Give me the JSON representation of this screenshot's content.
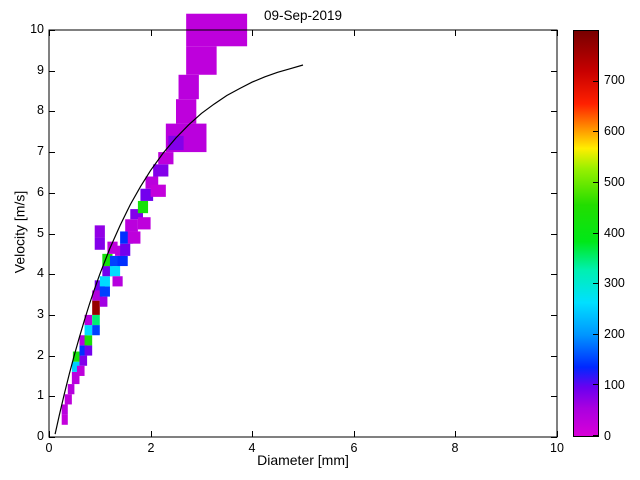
{
  "figure": {
    "background": "#ffffff"
  },
  "chart_data": {
    "type": "heatmap",
    "title": "09-Sep-2019",
    "xlabel": "Diameter [mm]",
    "ylabel": "Velocity [m/s]",
    "xlim": [
      0,
      10
    ],
    "ylim": [
      0,
      10
    ],
    "xticks": [
      0,
      2,
      4,
      6,
      8,
      10
    ],
    "yticks": [
      0,
      1,
      2,
      3,
      4,
      5,
      6,
      7,
      8,
      9,
      10
    ],
    "grid": false,
    "legend": false,
    "colorbar": {
      "position": "right",
      "min": 0,
      "max": 800,
      "ticks": [
        0,
        100,
        200,
        300,
        400,
        500,
        600,
        700
      ]
    },
    "colormap": [
      {
        "t": 0.0,
        "c": "#d800d8"
      },
      {
        "t": 0.07,
        "c": "#a800e0"
      },
      {
        "t": 0.12,
        "c": "#6a00f0"
      },
      {
        "t": 0.17,
        "c": "#0028ff"
      },
      {
        "t": 0.25,
        "c": "#0096ff"
      },
      {
        "t": 0.33,
        "c": "#00e0ff"
      },
      {
        "t": 0.41,
        "c": "#00f0b0"
      },
      {
        "t": 0.48,
        "c": "#00e818"
      },
      {
        "t": 0.57,
        "c": "#22dd00"
      },
      {
        "t": 0.66,
        "c": "#99f000"
      },
      {
        "t": 0.71,
        "c": "#ffee00"
      },
      {
        "t": 0.76,
        "c": "#ff9000"
      },
      {
        "t": 0.82,
        "c": "#ff2000"
      },
      {
        "t": 0.9,
        "c": "#c80000"
      },
      {
        "t": 1.0,
        "c": "#780000"
      }
    ],
    "cells_format": [
      "d_min_mm",
      "d_max_mm",
      "v_min_ms",
      "v_max_ms",
      "count"
    ],
    "cells": [
      [
        0.25,
        0.37,
        0.3,
        0.55,
        25
      ],
      [
        0.25,
        0.37,
        0.55,
        0.8,
        35
      ],
      [
        0.31,
        0.45,
        0.8,
        1.05,
        30
      ],
      [
        0.37,
        0.5,
        1.05,
        1.3,
        40
      ],
      [
        0.45,
        0.6,
        1.3,
        1.6,
        35
      ],
      [
        0.45,
        0.6,
        1.6,
        1.85,
        250
      ],
      [
        0.47,
        0.62,
        1.85,
        2.1,
        430
      ],
      [
        0.55,
        0.7,
        1.5,
        1.75,
        30
      ],
      [
        0.6,
        0.75,
        1.75,
        2.0,
        80
      ],
      [
        0.6,
        0.75,
        2.0,
        2.25,
        140
      ],
      [
        0.6,
        0.75,
        2.25,
        2.5,
        40
      ],
      [
        0.7,
        0.85,
        2.0,
        2.25,
        90
      ],
      [
        0.7,
        0.85,
        2.25,
        2.5,
        440
      ],
      [
        0.7,
        0.85,
        2.5,
        2.75,
        260
      ],
      [
        0.7,
        0.85,
        2.75,
        3.0,
        40
      ],
      [
        0.85,
        1.0,
        2.5,
        2.75,
        150
      ],
      [
        0.85,
        1.0,
        2.75,
        3.0,
        350
      ],
      [
        0.85,
        1.0,
        3.0,
        3.35,
        770
      ],
      [
        0.85,
        1.05,
        3.35,
        3.6,
        45
      ],
      [
        0.9,
        1.1,
        3.6,
        3.85,
        90
      ],
      [
        1.0,
        1.15,
        3.2,
        3.45,
        60
      ],
      [
        1.0,
        1.2,
        3.45,
        3.7,
        150
      ],
      [
        1.0,
        1.2,
        3.7,
        3.95,
        260
      ],
      [
        1.05,
        1.25,
        3.95,
        4.2,
        90
      ],
      [
        1.05,
        1.25,
        4.2,
        4.5,
        430
      ],
      [
        1.2,
        1.4,
        3.95,
        4.2,
        260
      ],
      [
        1.2,
        1.4,
        4.2,
        4.45,
        150
      ],
      [
        1.25,
        1.45,
        3.7,
        3.95,
        40
      ],
      [
        1.3,
        1.5,
        4.45,
        4.7,
        35
      ],
      [
        1.35,
        1.55,
        4.2,
        4.45,
        140
      ],
      [
        0.9,
        1.1,
        4.6,
        4.9,
        80
      ],
      [
        0.9,
        1.1,
        4.9,
        5.2,
        70
      ],
      [
        1.15,
        1.35,
        4.5,
        4.8,
        30
      ],
      [
        1.4,
        1.6,
        4.45,
        4.75,
        90
      ],
      [
        1.4,
        1.65,
        4.75,
        5.05,
        140
      ],
      [
        1.5,
        1.75,
        5.05,
        5.35,
        35
      ],
      [
        1.55,
        1.8,
        4.75,
        5.05,
        30
      ],
      [
        1.6,
        1.85,
        5.35,
        5.6,
        80
      ],
      [
        1.75,
        1.95,
        5.5,
        5.8,
        430
      ],
      [
        1.75,
        2.0,
        5.1,
        5.4,
        30
      ],
      [
        1.8,
        2.05,
        5.8,
        6.1,
        90
      ],
      [
        1.9,
        2.15,
        6.1,
        6.4,
        35
      ],
      [
        2.0,
        2.3,
        5.9,
        6.2,
        25
      ],
      [
        2.05,
        2.35,
        6.4,
        6.7,
        80
      ],
      [
        2.15,
        2.45,
        6.7,
        7.0,
        30
      ],
      [
        2.3,
        3.1,
        7.0,
        7.7,
        35
      ],
      [
        2.35,
        2.65,
        7.05,
        7.4,
        80
      ],
      [
        2.5,
        2.9,
        7.7,
        8.3,
        30
      ],
      [
        2.55,
        2.95,
        8.3,
        8.9,
        35
      ],
      [
        2.7,
        3.3,
        8.9,
        9.6,
        30
      ],
      [
        2.7,
        3.9,
        9.6,
        10.4,
        30
      ]
    ],
    "curve": {
      "name": "terminal-velocity-curve",
      "color": "#000000",
      "points": [
        [
          0.12,
          0.07
        ],
        [
          0.2,
          0.52
        ],
        [
          0.3,
          1.05
        ],
        [
          0.4,
          1.55
        ],
        [
          0.5,
          2.02
        ],
        [
          0.6,
          2.46
        ],
        [
          0.7,
          2.88
        ],
        [
          0.8,
          3.28
        ],
        [
          0.9,
          3.65
        ],
        [
          1.0,
          4.0
        ],
        [
          1.2,
          4.64
        ],
        [
          1.4,
          5.2
        ],
        [
          1.6,
          5.71
        ],
        [
          1.8,
          6.15
        ],
        [
          2.0,
          6.55
        ],
        [
          2.25,
          6.98
        ],
        [
          2.5,
          7.35
        ],
        [
          2.75,
          7.67
        ],
        [
          3.0,
          7.95
        ],
        [
          3.25,
          8.18
        ],
        [
          3.5,
          8.39
        ],
        [
          3.75,
          8.56
        ],
        [
          4.0,
          8.72
        ],
        [
          4.25,
          8.85
        ],
        [
          4.5,
          8.96
        ],
        [
          4.75,
          9.05
        ],
        [
          5.0,
          9.14
        ]
      ]
    }
  }
}
